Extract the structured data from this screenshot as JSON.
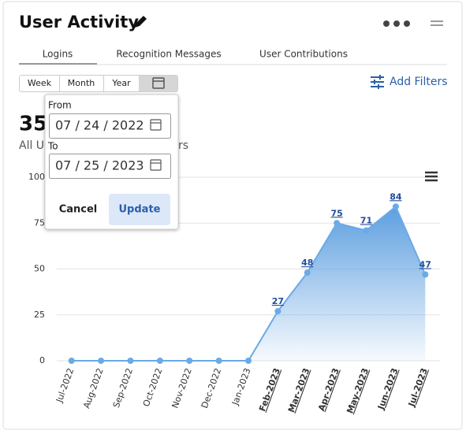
{
  "header": {
    "title": "User Activity"
  },
  "tabs": [
    "Logins",
    "Recognition Messages",
    "User Contributions"
  ],
  "periods": [
    "Week",
    "Month",
    "Year"
  ],
  "add_filters": "Add Filters",
  "summary": {
    "value": "35",
    "label_start": "All U",
    "label_end": "rs"
  },
  "date_picker": {
    "from_label": "From",
    "from": "07 / 24 / 2022",
    "to_label": "To",
    "to": "07 / 25 / 2023",
    "cancel": "Cancel",
    "update": "Update"
  },
  "chart_data": {
    "type": "area",
    "categories": [
      "Jul-2022",
      "Aug-2022",
      "Sep-2022",
      "Oct-2022",
      "Nov-2022",
      "Dec-2022",
      "Jan-2023",
      "Feb-2023",
      "Mar-2023",
      "Apr-2023",
      "May-2023",
      "Jun-2023",
      "Jul-2023"
    ],
    "values": [
      0,
      0,
      0,
      0,
      0,
      0,
      0,
      27,
      48,
      75,
      71,
      84,
      47
    ],
    "color": "#6aaae6",
    "ylim": [
      0,
      100
    ],
    "yticks": [
      0,
      25,
      50,
      75,
      100
    ],
    "grid": true
  }
}
